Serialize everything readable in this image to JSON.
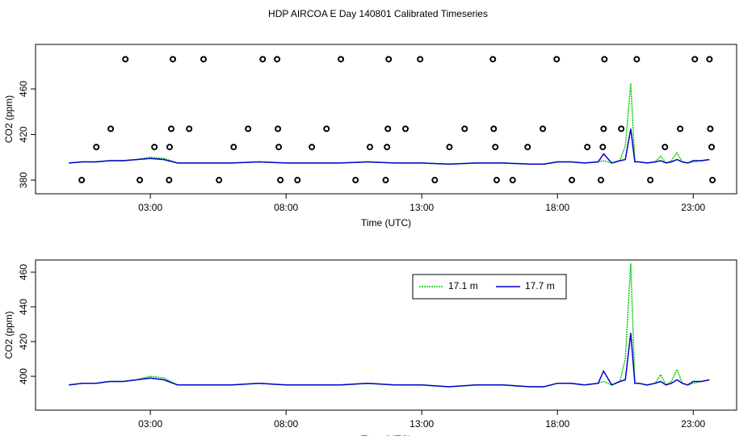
{
  "chart_data": [
    {
      "type": "line",
      "title": "HDP AIRCOA E  Day 140801  Calibrated Timeseries",
      "x_label": "Time (UTC)",
      "y_label": "CO2 (ppm)",
      "xlim": [
        -1.23,
        24.6
      ],
      "ylim": [
        368,
        499
      ],
      "xticks": [
        {
          "value": 3,
          "label": "03:00"
        },
        {
          "value": 8,
          "label": "08:00"
        },
        {
          "value": 13,
          "label": "13:00"
        },
        {
          "value": 18,
          "label": "18:00"
        },
        {
          "value": 23,
          "label": "23:00"
        }
      ],
      "yticks": [
        380,
        420,
        460
      ],
      "x": [
        0,
        0.5,
        1,
        1.5,
        2,
        2.5,
        3,
        3.5,
        4,
        5,
        6,
        7,
        8,
        9,
        10,
        11,
        12,
        13,
        14,
        15,
        16,
        17,
        17.5,
        18,
        18.5,
        19,
        19.5,
        19.7,
        20,
        20.3,
        20.5,
        20.7,
        20.85,
        21,
        21.3,
        21.6,
        21.8,
        22,
        22.2,
        22.4,
        22.6,
        22.8,
        23,
        23.3,
        23.6
      ],
      "series": [
        {
          "color": "#00cc00",
          "dash": true,
          "values": [
            395,
            396,
            396,
            397,
            397,
            398,
            400,
            399,
            395,
            395,
            395,
            396,
            395,
            395,
            395,
            396,
            395,
            395,
            394,
            395,
            395,
            394,
            394,
            396,
            396,
            395,
            396,
            397,
            395,
            397,
            410,
            465,
            396,
            396,
            395,
            396,
            401,
            395,
            397,
            404,
            396,
            395,
            396,
            397,
            398
          ]
        },
        {
          "color": "#0000cc",
          "dash": false,
          "values": [
            395,
            396,
            396,
            397,
            397,
            398,
            399,
            398,
            395,
            395,
            395,
            396,
            395,
            395,
            395,
            396,
            395,
            395,
            394,
            395,
            395,
            394,
            394,
            396,
            396,
            395,
            396,
            403,
            395,
            397,
            398,
            425,
            396,
            396,
            395,
            396,
            397,
            395,
            396,
            398,
            396,
            395,
            397,
            397,
            398
          ]
        }
      ],
      "points": {
        "x": [
          2.08,
          3.83,
          4.96,
          7.14,
          7.67,
          10.02,
          11.78,
          12.94,
          15.62,
          17.97,
          19.73,
          20.92,
          23.06,
          23.6,
          1.54,
          3.77,
          4.43,
          6.6,
          7.7,
          9.49,
          11.75,
          12.4,
          14.58,
          15.65,
          17.46,
          19.7,
          20.35,
          22.52,
          23.63,
          1.01,
          3.15,
          3.71,
          6.07,
          7.73,
          8.95,
          11.09,
          11.72,
          14.02,
          15.71,
          16.9,
          19.1,
          19.67,
          21.96,
          23.68,
          0.47,
          2.61,
          3.69,
          5.53,
          7.79,
          8.42,
          10.56,
          11.67,
          13.48,
          15.76,
          16.35,
          18.53,
          19.6,
          21.42,
          23.71
        ],
        "values": [
          486,
          486,
          486,
          486,
          486,
          486,
          486,
          486,
          486,
          486,
          486,
          486,
          486,
          486,
          425,
          425,
          425,
          425,
          425,
          425,
          425,
          425,
          425,
          425,
          425,
          425,
          425,
          425,
          425,
          409,
          409,
          409,
          409,
          409,
          409,
          409,
          409,
          409,
          409,
          409,
          409,
          409,
          409,
          409,
          380,
          380,
          380,
          380,
          380,
          380,
          380,
          380,
          380,
          380,
          380,
          380,
          380,
          380,
          380
        ]
      }
    },
    {
      "type": "line",
      "x_label": "Time (UTC)",
      "y_label": "CO2 (ppm)",
      "xlim": [
        -1.23,
        24.6
      ],
      "ylim": [
        380.5,
        467
      ],
      "xticks": [
        {
          "value": 3,
          "label": "03:00"
        },
        {
          "value": 8,
          "label": "08:00"
        },
        {
          "value": 13,
          "label": "13:00"
        },
        {
          "value": 18,
          "label": "18:00"
        },
        {
          "value": 23,
          "label": "23:00"
        }
      ],
      "yticks": [
        400,
        420,
        440,
        460
      ],
      "x": [
        0,
        0.5,
        1,
        1.5,
        2,
        2.5,
        3,
        3.5,
        4,
        5,
        6,
        7,
        8,
        9,
        10,
        11,
        12,
        13,
        14,
        15,
        16,
        17,
        17.5,
        18,
        18.5,
        19,
        19.5,
        19.7,
        20,
        20.3,
        20.5,
        20.7,
        20.85,
        21,
        21.3,
        21.6,
        21.8,
        22,
        22.2,
        22.4,
        22.6,
        22.8,
        23,
        23.3,
        23.6
      ],
      "series": [
        {
          "name": "17.1 m",
          "color": "#00cc00",
          "dash": true,
          "values": [
            395,
            396,
            396,
            397,
            397,
            398,
            400,
            399,
            395,
            395,
            395,
            396,
            395,
            395,
            395,
            396,
            395,
            395,
            394,
            395,
            395,
            394,
            394,
            396,
            396,
            395,
            396,
            397,
            395,
            397,
            410,
            465,
            396,
            396,
            395,
            396,
            401,
            395,
            397,
            404,
            396,
            395,
            396,
            397,
            398
          ]
        },
        {
          "name": "17.7 m",
          "color": "#0000cc",
          "dash": false,
          "values": [
            395,
            396,
            396,
            397,
            397,
            398,
            399,
            398,
            395,
            395,
            395,
            396,
            395,
            395,
            395,
            396,
            395,
            395,
            394,
            395,
            395,
            394,
            394,
            396,
            396,
            395,
            396,
            403,
            395,
            397,
            398,
            425,
            396,
            396,
            395,
            396,
            397,
            395,
            396,
            398,
            396,
            395,
            397,
            397,
            398
          ]
        }
      ]
    }
  ]
}
